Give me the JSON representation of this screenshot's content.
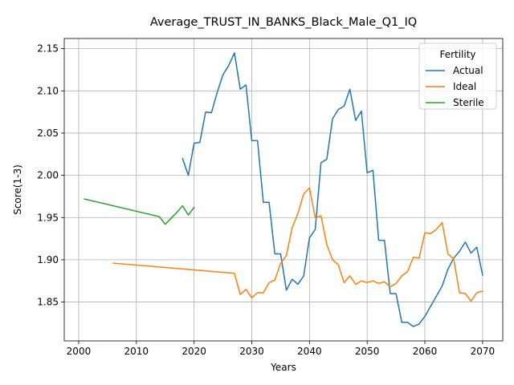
{
  "chart_data": {
    "type": "line",
    "title": "Average_TRUST_IN_BANKS_Black_Male_Q1_IQ",
    "xlabel": "Years",
    "ylabel": "Score(1-3)",
    "xlim": [
      1997.5,
      2073.5
    ],
    "ylim": [
      1.804,
      2.162
    ],
    "xticks": [
      2000,
      2010,
      2020,
      2030,
      2040,
      2050,
      2060,
      2070
    ],
    "yticks": [
      1.85,
      1.9,
      1.95,
      2.0,
      2.05,
      2.1,
      2.15
    ],
    "grid": true,
    "legend": {
      "title": "Fertility",
      "position": "top-right"
    },
    "series": [
      {
        "name": "Actual",
        "color": "#1f77b4",
        "points": [
          [
            2018,
            2.02
          ],
          [
            2019,
            2.0
          ],
          [
            2020,
            2.038
          ],
          [
            2021,
            2.039
          ],
          [
            2022,
            2.075
          ],
          [
            2023,
            2.074
          ],
          [
            2024,
            2.098
          ],
          [
            2025,
            2.119
          ],
          [
            2026,
            2.13
          ],
          [
            2027,
            2.145
          ],
          [
            2028,
            2.102
          ],
          [
            2029,
            2.107
          ],
          [
            2030,
            2.041
          ],
          [
            2031,
            2.041
          ],
          [
            2032,
            1.968
          ],
          [
            2033,
            1.968
          ],
          [
            2034,
            1.907
          ],
          [
            2035,
            1.907
          ],
          [
            2036,
            1.864
          ],
          [
            2037,
            1.877
          ],
          [
            2038,
            1.871
          ],
          [
            2039,
            1.881
          ],
          [
            2040,
            1.926
          ],
          [
            2041,
            1.936
          ],
          [
            2042,
            2.015
          ],
          [
            2043,
            2.019
          ],
          [
            2044,
            2.067
          ],
          [
            2045,
            2.078
          ],
          [
            2046,
            2.082
          ],
          [
            2047,
            2.102
          ],
          [
            2048,
            2.065
          ],
          [
            2049,
            2.076
          ],
          [
            2050,
            2.003
          ],
          [
            2051,
            2.006
          ],
          [
            2052,
            1.923
          ],
          [
            2053,
            1.923
          ],
          [
            2054,
            1.86
          ],
          [
            2055,
            1.86
          ],
          [
            2056,
            1.826
          ],
          [
            2057,
            1.826
          ],
          [
            2058,
            1.821
          ],
          [
            2059,
            1.824
          ],
          [
            2060,
            1.833
          ],
          [
            2061,
            1.845
          ],
          [
            2062,
            1.857
          ],
          [
            2063,
            1.869
          ],
          [
            2064,
            1.889
          ],
          [
            2065,
            1.902
          ],
          [
            2066,
            1.91
          ],
          [
            2067,
            1.921
          ],
          [
            2068,
            1.908
          ],
          [
            2069,
            1.915
          ],
          [
            2070,
            1.882
          ]
        ]
      },
      {
        "name": "Ideal",
        "color": "#ff7f0e",
        "points": [
          [
            2006,
            1.896
          ],
          [
            2027,
            1.884
          ],
          [
            2028,
            1.859
          ],
          [
            2029,
            1.865
          ],
          [
            2030,
            1.855
          ],
          [
            2031,
            1.861
          ],
          [
            2032,
            1.861
          ],
          [
            2033,
            1.873
          ],
          [
            2034,
            1.876
          ],
          [
            2035,
            1.896
          ],
          [
            2036,
            1.905
          ],
          [
            2037,
            1.938
          ],
          [
            2038,
            1.955
          ],
          [
            2039,
            1.978
          ],
          [
            2040,
            1.985
          ],
          [
            2041,
            1.95
          ],
          [
            2042,
            1.952
          ],
          [
            2043,
            1.918
          ],
          [
            2044,
            1.9
          ],
          [
            2045,
            1.894
          ],
          [
            2046,
            1.873
          ],
          [
            2047,
            1.881
          ],
          [
            2048,
            1.871
          ],
          [
            2049,
            1.875
          ],
          [
            2050,
            1.873
          ],
          [
            2051,
            1.875
          ],
          [
            2052,
            1.872
          ],
          [
            2053,
            1.874
          ],
          [
            2054,
            1.868
          ],
          [
            2055,
            1.872
          ],
          [
            2056,
            1.881
          ],
          [
            2057,
            1.886
          ],
          [
            2058,
            1.903
          ],
          [
            2059,
            1.902
          ],
          [
            2060,
            1.932
          ],
          [
            2061,
            1.931
          ],
          [
            2062,
            1.936
          ],
          [
            2063,
            1.944
          ],
          [
            2064,
            1.907
          ],
          [
            2065,
            1.901
          ],
          [
            2066,
            1.861
          ],
          [
            2067,
            1.86
          ],
          [
            2068,
            1.851
          ],
          [
            2069,
            1.861
          ],
          [
            2070,
            1.863
          ]
        ]
      },
      {
        "name": "Sterile",
        "color": "#2ca02c",
        "points": [
          [
            2001,
            1.972
          ],
          [
            2014,
            1.951
          ],
          [
            2015,
            1.942
          ],
          [
            2016,
            1.949
          ],
          [
            2017,
            1.956
          ],
          [
            2018,
            1.964
          ],
          [
            2019,
            1.953
          ],
          [
            2020,
            1.962
          ]
        ]
      }
    ]
  }
}
